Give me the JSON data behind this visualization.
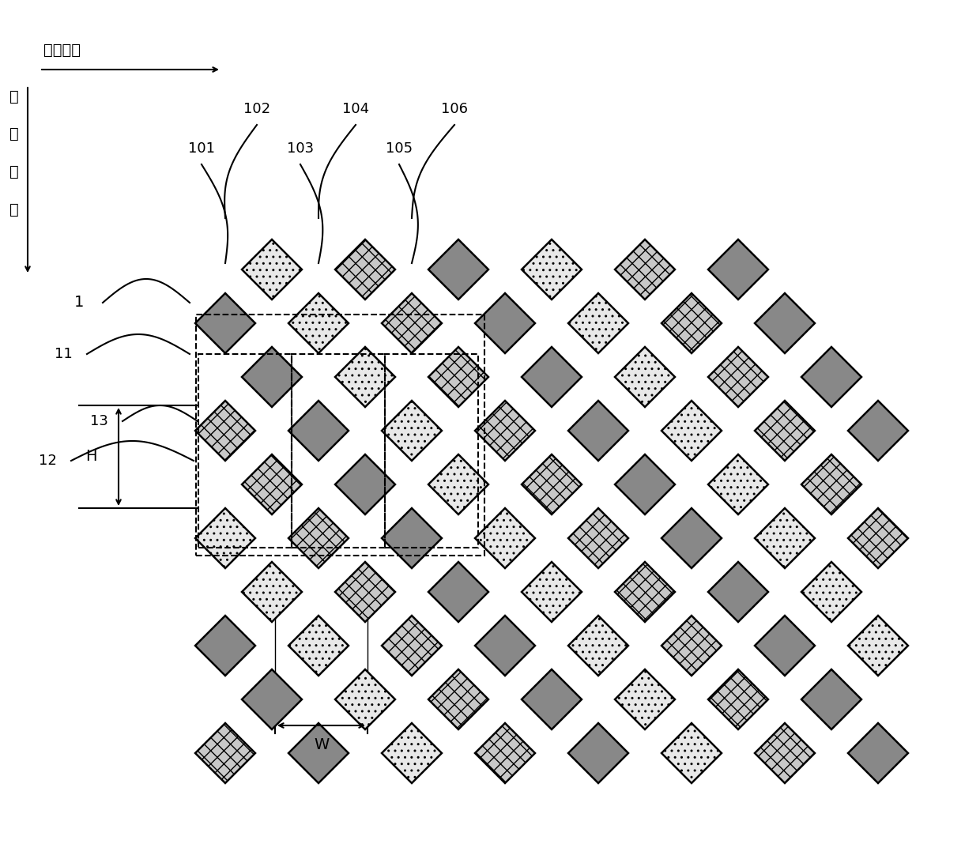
{
  "bg_color": "#ffffff",
  "diamond_size": 0.38,
  "grid_cols": 8,
  "grid_rows": 7,
  "pixel_types": {
    "cross_hatch": {
      "facecolor": "#c8c8c8",
      "hatch": "xx",
      "edgecolor": "#000000"
    },
    "dot": {
      "facecolor": "#e8e8e8",
      "hatch": "..",
      "edgecolor": "#000000"
    },
    "solid_gray": {
      "facecolor": "#888888",
      "hatch": "",
      "edgecolor": "#000000"
    },
    "light_dot": {
      "facecolor": "#f0f0f0",
      "hatch": "..",
      "edgecolor": "#000000"
    }
  },
  "labels": {
    "dir2": "第二方向",
    "dir1_chars": [
      "第",
      "一",
      "方",
      "向"
    ],
    "label_1": "1",
    "label_11": "11",
    "label_12": "12",
    "label_13": "13",
    "label_101": "101",
    "label_102": "102",
    "label_103": "103",
    "label_104": "104",
    "label_105": "105",
    "label_106": "106",
    "label_H": "H",
    "label_W": "W"
  }
}
